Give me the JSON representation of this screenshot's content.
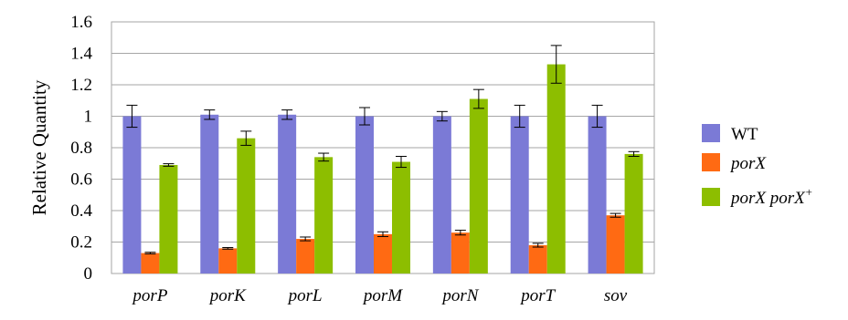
{
  "chart_data": {
    "type": "bar",
    "ylabel": "Relative Quantity",
    "xlabel": "",
    "ylim": [
      0,
      1.6
    ],
    "yticks": [
      "0",
      "0.2",
      "0.4",
      "0.6",
      "0.8",
      "1",
      "1.2",
      "1.4",
      "1.6"
    ],
    "grid": true,
    "legend_position": "right",
    "categories": [
      "porP",
      "porK",
      "porL",
      "porM",
      "porN",
      "porT",
      "sov"
    ],
    "series": [
      {
        "name": "WT",
        "color": "#7b7ad6",
        "values": [
          1.0,
          1.01,
          1.01,
          1.0,
          1.0,
          1.0,
          1.0
        ],
        "errors": [
          0.07,
          0.03,
          0.03,
          0.055,
          0.03,
          0.07,
          0.07
        ]
      },
      {
        "name": "porX",
        "color": "#ff6a13",
        "values": [
          0.13,
          0.16,
          0.22,
          0.25,
          0.26,
          0.18,
          0.37
        ],
        "errors": [
          0.005,
          0.005,
          0.012,
          0.015,
          0.015,
          0.012,
          0.012
        ]
      },
      {
        "name": "porX porX",
        "name_sup": "+",
        "color": "#8dbe00",
        "values": [
          0.69,
          0.86,
          0.74,
          0.71,
          1.11,
          1.33,
          0.76
        ],
        "errors": [
          0.008,
          0.045,
          0.025,
          0.035,
          0.06,
          0.12,
          0.015
        ]
      }
    ]
  }
}
